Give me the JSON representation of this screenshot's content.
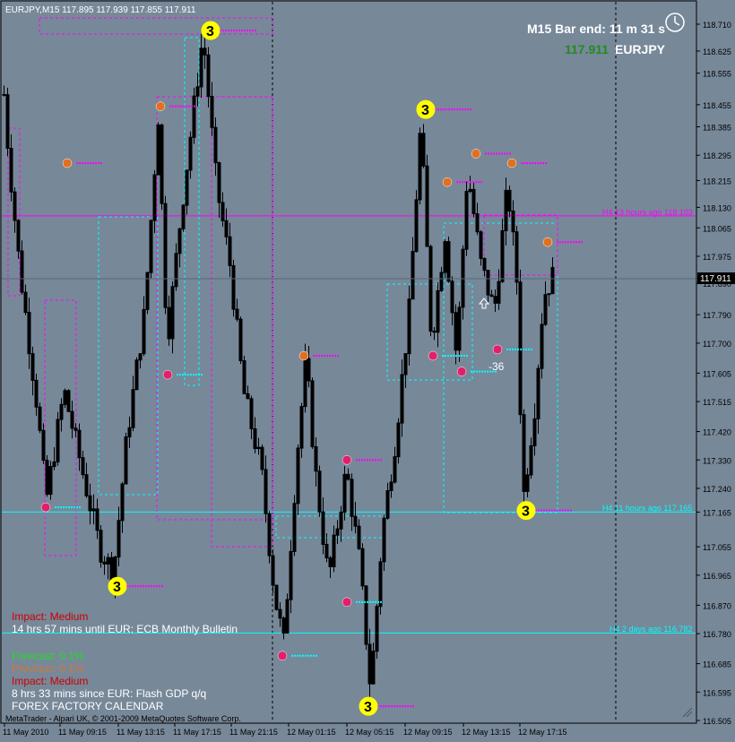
{
  "header": {
    "symbol_label": "EURJPY,M15  117.895 117.939 117.855 117.911",
    "bar_end_label": "M15 Bar end: 11 m 31 s",
    "current_price_label": "117.911",
    "pair_label": "EURJPY",
    "clock_icon": "clock-icon"
  },
  "price_axis": {
    "ticks": [
      "118.710",
      "118.625",
      "118.555",
      "118.455",
      "118.385",
      "118.295",
      "118.215",
      "118.130",
      "118.065",
      "117.975",
      "117.890",
      "117.790",
      "117.700",
      "117.605",
      "117.515",
      "117.420",
      "117.330",
      "117.240",
      "117.165",
      "117.055",
      "116.965",
      "116.870",
      "116.780",
      "116.685",
      "116.595",
      "116.505"
    ],
    "current_price_box": "117.911"
  },
  "time_axis": {
    "ticks": [
      "11 May 2010",
      "11 May 09:15",
      "11 May 13:15",
      "11 May 17:15",
      "11 May 21:15",
      "12 May 01:15",
      "12 May 05:15",
      "12 May 09:15",
      "12 May 13:15",
      "12 May 17:15"
    ]
  },
  "levels": [
    {
      "label": "H4 13 hours ago 118.103",
      "price": 118.103,
      "color": "#ff00ff"
    },
    {
      "label": "H4 11 hours ago 117.165",
      "price": 117.165,
      "color": "#00ffff"
    },
    {
      "label": "H4 2 days ago 116.782",
      "price": 116.782,
      "color": "#00ffff"
    }
  ],
  "annotations": {
    "swing_label": "-36",
    "up_arrow_icon": "up-arrow-icon"
  },
  "news_panel": {
    "impact_1": "Impact: Medium",
    "event_1": "14 hrs 57 mins until EUR: ECB Monthly Bulletin",
    "forecast": "Forecast: 0.1%",
    "previous": "Previous: 0.1%",
    "impact_2": "Impact: Medium",
    "event_2": "8 hrs 33 mins since EUR: Flash GDP q/q",
    "source": "FOREX FACTORY CALENDAR"
  },
  "footer": {
    "copyright": "MetaTrader - Alpari UK, © 2001-2009 MetaQuotes Software Corp."
  },
  "colors": {
    "background": "#778899",
    "candle": "#000000",
    "magenta": "#ff00ff",
    "cyan": "#00ffff",
    "yellow_marker": "#ffff00",
    "orange_marker": "#e07020",
    "pink_marker": "#e0206a"
  },
  "chart_data": {
    "type": "candlestick",
    "title": "EURJPY,M15",
    "price_range": [
      116.505,
      118.75
    ],
    "swing_markers": [
      {
        "label": "3",
        "time_index": 29,
        "price": 118.69,
        "kind": "major"
      },
      {
        "label": "",
        "time_index": 22,
        "price": 118.45,
        "kind": "high"
      },
      {
        "label": "",
        "time_index": 9,
        "price": 118.27,
        "kind": "high"
      },
      {
        "label": "",
        "time_index": 6,
        "price": 117.18,
        "kind": "low"
      },
      {
        "label": "3",
        "time_index": 16,
        "price": 116.93,
        "kind": "major"
      },
      {
        "label": "",
        "time_index": 23,
        "price": 117.6,
        "kind": "low"
      },
      {
        "label": "",
        "time_index": 42,
        "price": 117.66,
        "kind": "high"
      },
      {
        "label": "",
        "time_index": 39,
        "price": 116.71,
        "kind": "low"
      },
      {
        "label": "",
        "time_index": 48,
        "price": 116.88,
        "kind": "low"
      },
      {
        "label": "",
        "time_index": 48,
        "price": 117.33,
        "kind": "high"
      },
      {
        "label": "3",
        "time_index": 51,
        "price": 116.55,
        "kind": "major"
      },
      {
        "label": "3",
        "time_index": 59,
        "price": 118.44,
        "kind": "major"
      },
      {
        "label": "",
        "time_index": 60,
        "price": 117.66,
        "kind": "low"
      },
      {
        "label": "",
        "time_index": 62,
        "price": 118.21,
        "kind": "high"
      },
      {
        "label": "",
        "time_index": 64,
        "price": 117.61,
        "kind": "low"
      },
      {
        "label": "",
        "time_index": 66,
        "price": 118.3,
        "kind": "high"
      },
      {
        "label": "",
        "time_index": 69,
        "price": 117.68,
        "kind": "low"
      },
      {
        "label": "",
        "time_index": 71,
        "price": 118.27,
        "kind": "high"
      },
      {
        "label": "3",
        "time_index": 73,
        "price": 117.17,
        "kind": "major"
      },
      {
        "label": "",
        "time_index": 76,
        "price": 118.02,
        "kind": "high"
      }
    ]
  }
}
